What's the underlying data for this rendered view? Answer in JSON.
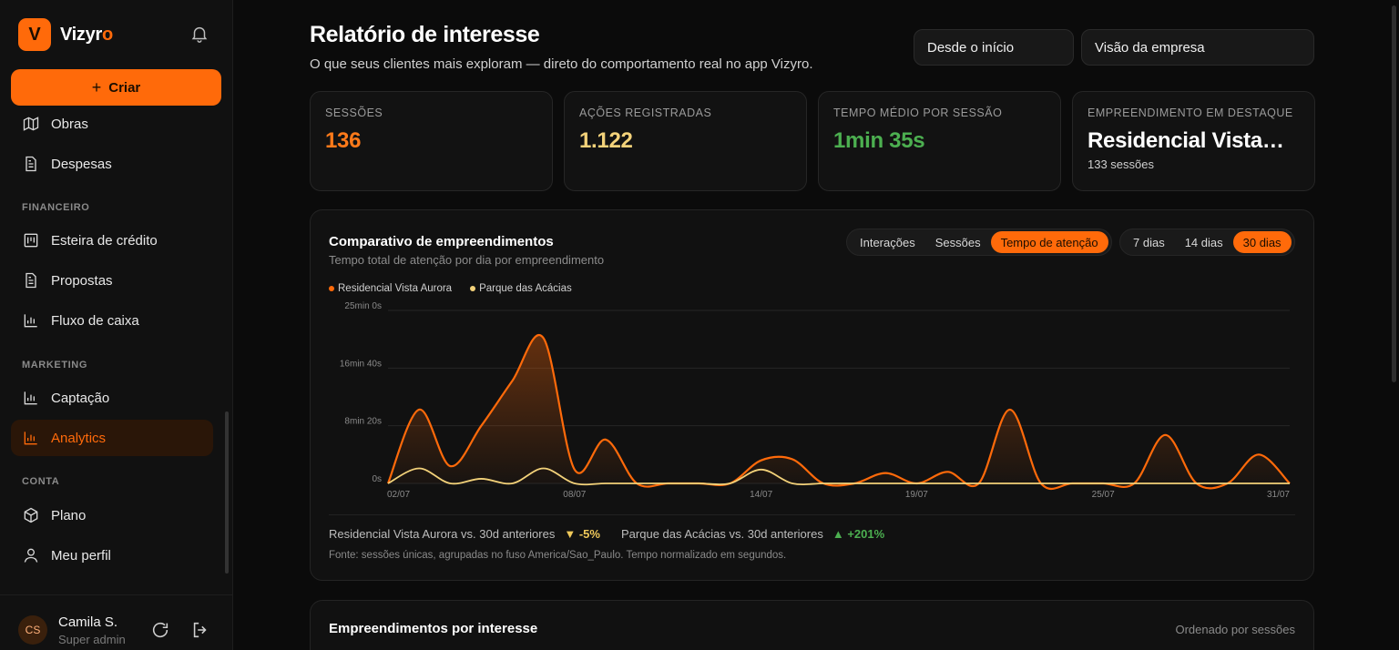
{
  "app": {
    "brand_letter": "V",
    "brand_name_main": "Vizyr",
    "brand_name_accent": "o",
    "create_label": "Criar"
  },
  "sidebar": {
    "items_top": [
      {
        "label": "Obras",
        "icon": "map-icon"
      },
      {
        "label": "Despesas",
        "icon": "document-icon"
      }
    ],
    "section_financeiro": "FINANCEIRO",
    "items_financeiro": [
      {
        "label": "Esteira de crédito",
        "icon": "kanban-icon"
      },
      {
        "label": "Propostas",
        "icon": "document-icon"
      },
      {
        "label": "Fluxo de caixa",
        "icon": "bar-chart-icon"
      }
    ],
    "section_marketing": "MARKETING",
    "items_marketing": [
      {
        "label": "Captação",
        "icon": "bar-chart-icon"
      },
      {
        "label": "Analytics",
        "icon": "bar-chart-icon",
        "active": true
      }
    ],
    "section_conta": "CONTA",
    "items_conta": [
      {
        "label": "Plano",
        "icon": "box-icon"
      },
      {
        "label": "Meu perfil",
        "icon": "user-icon"
      }
    ]
  },
  "user": {
    "initials": "CS",
    "name": "Camila S.",
    "role": "Super admin"
  },
  "header": {
    "title": "Relatório de interesse",
    "subtitle": "O que seus clientes mais exploram — direto do comportamento real no app Vizyro.",
    "period_select": "Desde o início",
    "scope_select": "Visão da empresa"
  },
  "kpis": [
    {
      "label": "SESSÕES",
      "value": "136",
      "color": "#ff7a1a"
    },
    {
      "label": "AÇÕES REGISTRADAS",
      "value": "1.122",
      "color": "#f3d27a"
    },
    {
      "label": "TEMPO MÉDIO POR SESSÃO",
      "value": "1min 35s",
      "color": "#4caf50"
    },
    {
      "label": "EMPREENDIMENTO EM DESTAQUE",
      "value": "Residencial Vista…",
      "note": "133 sessões",
      "color": "#ffffff"
    }
  ],
  "chart": {
    "title": "Comparativo de empreendimentos",
    "subtitle": "Tempo total de atenção por dia por empreendimento",
    "metric_tabs": [
      "Interações",
      "Sessões",
      "Tempo de atenção"
    ],
    "metric_active": 2,
    "range_tabs": [
      "7 dias",
      "14 dias",
      "30 dias"
    ],
    "range_active": 2,
    "compare_a_label": "Residencial Vista Aurora vs. 30d anteriores",
    "compare_a_value": "▼ -5%",
    "compare_b_label": "Parque das Acácias vs. 30d anteriores",
    "compare_b_value": "▲ +201%",
    "footnote": "Fonte: sessões únicas, agrupadas no fuso America/Sao_Paulo. Tempo normalizado em segundos."
  },
  "chart_data": {
    "type": "area",
    "x_tick_labels": [
      "02/07",
      "08/07",
      "14/07",
      "19/07",
      "25/07",
      "31/07"
    ],
    "y_tick_labels": [
      "0s",
      "8min 20s",
      "16min 40s",
      "25min 0s"
    ],
    "ylim_seconds": [
      0,
      1500
    ],
    "x_days": [
      "02/07",
      "03/07",
      "04/07",
      "05/07",
      "06/07",
      "07/07",
      "08/07",
      "09/07",
      "10/07",
      "11/07",
      "12/07",
      "13/07",
      "14/07",
      "15/07",
      "16/07",
      "17/07",
      "18/07",
      "19/07",
      "20/07",
      "21/07",
      "22/07",
      "23/07",
      "24/07",
      "25/07",
      "26/07",
      "27/07",
      "28/07",
      "29/07",
      "30/07",
      "31/07"
    ],
    "series": [
      {
        "name": "Residencial Vista Aurora",
        "color": "#ff6a0a",
        "values": [
          0,
          640,
          150,
          500,
          890,
          1260,
          120,
          380,
          0,
          0,
          0,
          0,
          200,
          210,
          0,
          0,
          90,
          0,
          100,
          0,
          640,
          0,
          0,
          0,
          0,
          420,
          0,
          0,
          250,
          0
        ]
      },
      {
        "name": "Parque das Acácias",
        "color": "#f3d27a",
        "values": [
          0,
          130,
          0,
          40,
          0,
          130,
          0,
          0,
          0,
          0,
          0,
          0,
          120,
          0,
          0,
          0,
          0,
          0,
          0,
          0,
          0,
          0,
          0,
          0,
          0,
          0,
          0,
          0,
          0,
          0
        ]
      }
    ]
  },
  "table": {
    "title": "Empreendimentos por interesse",
    "sort_note": "Ordenado por sessões"
  }
}
